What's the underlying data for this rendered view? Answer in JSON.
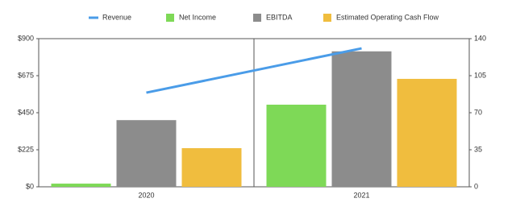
{
  "chart_data": {
    "type": "bar",
    "categories": [
      "2020",
      "2021"
    ],
    "series": [
      {
        "name": "Revenue",
        "type": "line",
        "color": "#4a9ce8",
        "values": [
          572,
          841
        ]
      },
      {
        "name": "Net Income",
        "color": "#7ed957",
        "axis": "y2",
        "values": [
          3,
          77.6
        ]
      },
      {
        "name": "EBITDA",
        "color": "#8c8c8c",
        "axis": "y2",
        "values": [
          63,
          128
        ]
      },
      {
        "name": "Estimated Operating Cash Flow",
        "color": "#f0bd3e",
        "axis": "y2",
        "values": [
          36.5,
          102
        ]
      }
    ],
    "ylim": [
      0,
      900
    ],
    "yticks": [
      {
        "value": 0,
        "label": "$0"
      },
      {
        "value": 225,
        "label": "$225"
      },
      {
        "value": 450,
        "label": "$450"
      },
      {
        "value": 675,
        "label": "$675"
      },
      {
        "value": 900,
        "label": "$900"
      }
    ],
    "y2lim": [
      0,
      140
    ],
    "y2ticks": [
      0,
      35,
      70,
      105,
      140
    ],
    "legend": "top"
  }
}
